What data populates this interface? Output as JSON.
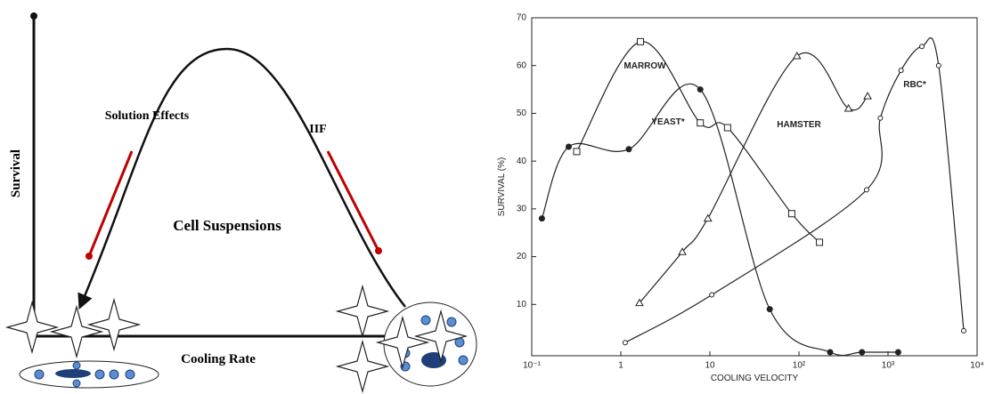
{
  "diagram": {
    "y_label": "Survival",
    "x_label": "Cooling Rate",
    "left_label": "Solution Effects",
    "right_label": "IIF",
    "center_label": "Cell Suspensions"
  },
  "chart_data": {
    "type": "scatter",
    "xlabel": "COOLING VELOCITY",
    "ylabel": "SURVIVAL (%)",
    "xscale": "log",
    "xlim": [
      0.1,
      10000
    ],
    "xticks": [
      {
        "value": 0.1,
        "label": "10⁻¹"
      },
      1,
      10,
      {
        "value": 100,
        "label": "10²"
      },
      {
        "value": 1000,
        "label": "10³"
      },
      {
        "value": 10000,
        "label": "10⁴"
      }
    ],
    "ylim": [
      0,
      70
    ],
    "yticks": [
      10,
      20,
      30,
      40,
      50,
      60,
      70
    ],
    "series": [
      {
        "name": "MARROW",
        "marker": "square",
        "color": "#222222",
        "x": [
          0.32,
          1.66,
          7.8,
          15.8,
          83,
          170
        ],
        "values": [
          42,
          65,
          48,
          47,
          29,
          23
        ]
      },
      {
        "name": "YEAST*",
        "marker": "filled-circle",
        "color": "#222222",
        "x": [
          0.13,
          0.26,
          1.23,
          7.8,
          47,
          224,
          510,
          1300
        ],
        "values": [
          28,
          43,
          42.5,
          55,
          9,
          0,
          0,
          0
        ]
      },
      {
        "name": "HAMSTER",
        "marker": "triangle",
        "color": "#222222",
        "x": [
          1.62,
          4.9,
          9.5,
          95,
          360,
          590
        ],
        "values": [
          10.3,
          21,
          28,
          62,
          51,
          53.6
        ]
      },
      {
        "name": "RBC*",
        "marker": "circle",
        "color": "#222222",
        "x": [
          1.12,
          10.5,
          575,
          820,
          1400,
          2400,
          3700,
          7080
        ],
        "values": [
          2,
          12,
          34,
          49,
          59,
          64,
          60,
          4.5
        ]
      }
    ]
  }
}
